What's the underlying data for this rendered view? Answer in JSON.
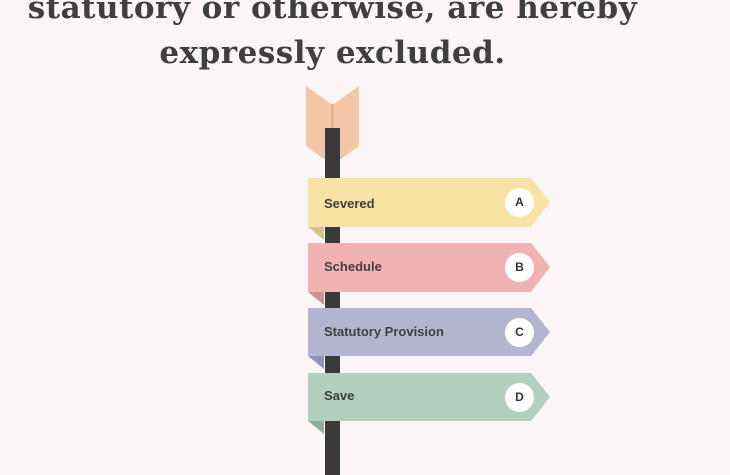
{
  "heading": {
    "line1": "statutory or otherwise, are hereby",
    "line2": "expressly excluded."
  },
  "signs": [
    {
      "label": "Severed",
      "badge": "A",
      "color": "#f8e3a5",
      "fold": "#d8c285"
    },
    {
      "label": "Schedule",
      "badge": "B",
      "color": "#f0b3b2",
      "fold": "#cf9090"
    },
    {
      "label": "Statutory Provision",
      "badge": "C",
      "color": "#b4b6d1",
      "fold": "#9093b3"
    },
    {
      "label": "Save",
      "badge": "D",
      "color": "#b2d0c0",
      "fold": "#8eae9d"
    }
  ],
  "colors": {
    "background": "#fcf5f8",
    "pole": "#3a3a3a",
    "arrow_fletching": "#f2c6a6",
    "arrow_shade": "#e8b392"
  }
}
